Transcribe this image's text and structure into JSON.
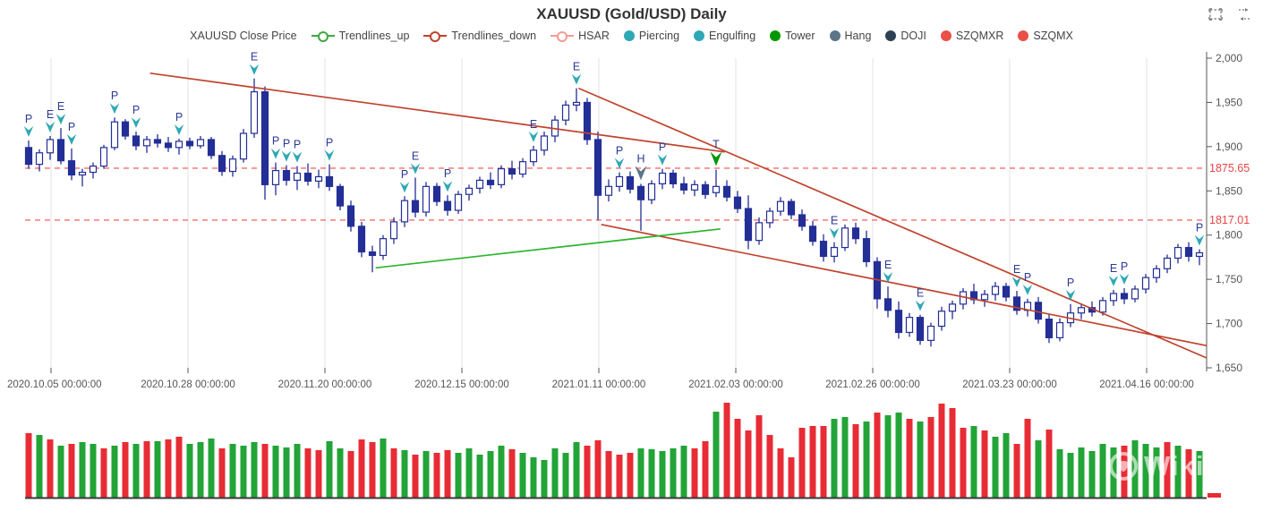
{
  "title": {
    "text": "XAUUSD (Gold/USD) Daily"
  },
  "toolbox": {
    "items": [
      {
        "name": "box-zoom"
      },
      {
        "name": "restore"
      }
    ]
  },
  "legend": [
    {
      "label": "XAUUSD Close Price",
      "symbol": "none",
      "color": "#444444"
    },
    {
      "label": "Trendlines_up",
      "symbol": "line-circle",
      "color": "#3DA93F"
    },
    {
      "label": "Trendlines_down",
      "symbol": "line-circle",
      "color": "#C0432D"
    },
    {
      "label": "HSAR",
      "symbol": "line-circle",
      "color": "#F59A93"
    },
    {
      "label": "Piercing",
      "symbol": "dot",
      "color": "#2FA8B5"
    },
    {
      "label": "Engulfing",
      "symbol": "dot",
      "color": "#2FA8B5"
    },
    {
      "label": "Tower",
      "symbol": "dot",
      "color": "#009700"
    },
    {
      "label": "Hang",
      "symbol": "dot",
      "color": "#5D7587"
    },
    {
      "label": "DOJI",
      "symbol": "dot",
      "color": "#2E4053"
    },
    {
      "label": "SZQMXR",
      "symbol": "dot",
      "color": "#E85048"
    },
    {
      "label": "SZQMX",
      "symbol": "dot",
      "color": "#E85048"
    }
  ],
  "colors": {
    "candle": "#232E96",
    "candle_up_fill": "#ffffff",
    "vol_up": "#22A437",
    "vol_down": "#E82C35",
    "grid": "#E3E3E3",
    "axis_line": "#555555",
    "axis_text": "#555555",
    "hsar_line": "#F56C6C",
    "hsar_label": "#E64545",
    "trend_up": "#2DB52D",
    "trend_down": "#C0432D",
    "marker_teal": "#2FA8B5",
    "marker_gray": "#5D7587",
    "marker_green": "#009700",
    "marker_letter": "#2B3A94",
    "baseline": "#3a3a3a"
  },
  "watermark": {
    "text": "WikiFX"
  },
  "chart_data": {
    "type": "candlestick+volume",
    "x_axis": {
      "labels": [
        "2020.10.05 00:00:00",
        "2020.10.28 00:00:00",
        "2020.11.20 00:00:00",
        "2020.12.15 00:00:00",
        "2021.01.11 00:00:00",
        "2021.02.03 00:00:00",
        "2021.02.26 00:00:00",
        "2021.03.23 00:00:00",
        "2021.04.16 00:00:00"
      ],
      "tick_x": [
        57,
        210,
        363,
        516,
        669,
        822,
        975,
        1128,
        1281
      ]
    },
    "y_axis": {
      "min": 1650,
      "max": 2000,
      "ticks": [
        2000,
        1950,
        1900,
        1850,
        1800,
        1750,
        1700,
        1650
      ]
    },
    "hsar_levels": [
      1875.65,
      1817.01
    ],
    "candles": [
      [
        1899,
        1907,
        1875,
        1880
      ],
      [
        1880,
        1897,
        1872,
        1893
      ],
      [
        1893,
        1912,
        1885,
        1908
      ],
      [
        1908,
        1921,
        1880,
        1884
      ],
      [
        1884,
        1898,
        1862,
        1868
      ],
      [
        1868,
        1875,
        1855,
        1871
      ],
      [
        1871,
        1882,
        1864,
        1878
      ],
      [
        1878,
        1902,
        1875,
        1899
      ],
      [
        1899,
        1933,
        1896,
        1928
      ],
      [
        1928,
        1931,
        1908,
        1912
      ],
      [
        1912,
        1917,
        1896,
        1901
      ],
      [
        1901,
        1912,
        1893,
        1908
      ],
      [
        1908,
        1914,
        1899,
        1904
      ],
      [
        1904,
        1911,
        1894,
        1899
      ],
      [
        1899,
        1909,
        1891,
        1906
      ],
      [
        1906,
        1910,
        1897,
        1901
      ],
      [
        1901,
        1912,
        1898,
        1908
      ],
      [
        1908,
        1911,
        1886,
        1890
      ],
      [
        1890,
        1895,
        1867,
        1872
      ],
      [
        1872,
        1890,
        1866,
        1886
      ],
      [
        1886,
        1920,
        1882,
        1915
      ],
      [
        1915,
        1977,
        1910,
        1962
      ],
      [
        1962,
        1968,
        1840,
        1857
      ],
      [
        1857,
        1882,
        1845,
        1873
      ],
      [
        1873,
        1879,
        1856,
        1862
      ],
      [
        1862,
        1878,
        1851,
        1870
      ],
      [
        1870,
        1881,
        1856,
        1861
      ],
      [
        1861,
        1874,
        1853,
        1866
      ],
      [
        1866,
        1880,
        1850,
        1855
      ],
      [
        1855,
        1858,
        1828,
        1833
      ],
      [
        1833,
        1839,
        1804,
        1810
      ],
      [
        1810,
        1815,
        1775,
        1781
      ],
      [
        1781,
        1788,
        1758,
        1777
      ],
      [
        1777,
        1800,
        1772,
        1796
      ],
      [
        1796,
        1820,
        1790,
        1815
      ],
      [
        1815,
        1844,
        1809,
        1839
      ],
      [
        1839,
        1865,
        1820,
        1826
      ],
      [
        1826,
        1860,
        1821,
        1855
      ],
      [
        1855,
        1859,
        1833,
        1838
      ],
      [
        1838,
        1845,
        1822,
        1828
      ],
      [
        1828,
        1850,
        1824,
        1846
      ],
      [
        1846,
        1857,
        1839,
        1853
      ],
      [
        1853,
        1866,
        1847,
        1862
      ],
      [
        1862,
        1871,
        1852,
        1857
      ],
      [
        1857,
        1879,
        1853,
        1875
      ],
      [
        1875,
        1884,
        1863,
        1869
      ],
      [
        1869,
        1887,
        1865,
        1883
      ],
      [
        1883,
        1901,
        1878,
        1896
      ],
      [
        1896,
        1917,
        1890,
        1912
      ],
      [
        1912,
        1935,
        1905,
        1930
      ],
      [
        1930,
        1952,
        1924,
        1947
      ],
      [
        1947,
        1966,
        1940,
        1950
      ],
      [
        1950,
        1955,
        1902,
        1908
      ],
      [
        1908,
        1917,
        1817,
        1845
      ],
      [
        1845,
        1863,
        1838,
        1855
      ],
      [
        1855,
        1871,
        1849,
        1866
      ],
      [
        1866,
        1872,
        1847,
        1852
      ],
      [
        1855,
        1858,
        1805,
        1840
      ],
      [
        1840,
        1862,
        1835,
        1858
      ],
      [
        1858,
        1875,
        1852,
        1870
      ],
      [
        1870,
        1874,
        1853,
        1858
      ],
      [
        1858,
        1866,
        1846,
        1851
      ],
      [
        1851,
        1862,
        1844,
        1857
      ],
      [
        1857,
        1861,
        1841,
        1846
      ],
      [
        1848,
        1874,
        1843,
        1855
      ],
      [
        1855,
        1862,
        1838,
        1843
      ],
      [
        1843,
        1850,
        1825,
        1830
      ],
      [
        1830,
        1845,
        1784,
        1794
      ],
      [
        1794,
        1820,
        1789,
        1814
      ],
      [
        1814,
        1831,
        1808,
        1827
      ],
      [
        1827,
        1843,
        1822,
        1838
      ],
      [
        1838,
        1841,
        1818,
        1823
      ],
      [
        1823,
        1829,
        1805,
        1810
      ],
      [
        1810,
        1816,
        1788,
        1793
      ],
      [
        1793,
        1801,
        1770,
        1776
      ],
      [
        1776,
        1792,
        1769,
        1786
      ],
      [
        1786,
        1812,
        1782,
        1808
      ],
      [
        1808,
        1814,
        1790,
        1796
      ],
      [
        1796,
        1805,
        1764,
        1770
      ],
      [
        1770,
        1775,
        1717,
        1728
      ],
      [
        1728,
        1742,
        1707,
        1715
      ],
      [
        1715,
        1725,
        1683,
        1690
      ],
      [
        1690,
        1712,
        1685,
        1707
      ],
      [
        1707,
        1710,
        1676,
        1681
      ],
      [
        1681,
        1701,
        1674,
        1697
      ],
      [
        1697,
        1719,
        1692,
        1714
      ],
      [
        1714,
        1726,
        1705,
        1722
      ],
      [
        1722,
        1740,
        1716,
        1736
      ],
      [
        1736,
        1745,
        1722,
        1727
      ],
      [
        1727,
        1738,
        1719,
        1733
      ],
      [
        1733,
        1747,
        1726,
        1742
      ],
      [
        1742,
        1746,
        1725,
        1730
      ],
      [
        1730,
        1737,
        1710,
        1715
      ],
      [
        1715,
        1728,
        1708,
        1724
      ],
      [
        1724,
        1730,
        1700,
        1705
      ],
      [
        1705,
        1711,
        1678,
        1684
      ],
      [
        1684,
        1706,
        1680,
        1701
      ],
      [
        1701,
        1722,
        1696,
        1712
      ],
      [
        1712,
        1722,
        1705,
        1718
      ],
      [
        1718,
        1725,
        1708,
        1713
      ],
      [
        1713,
        1730,
        1709,
        1726
      ],
      [
        1726,
        1738,
        1720,
        1734
      ],
      [
        1734,
        1740,
        1722,
        1728
      ],
      [
        1728,
        1743,
        1724,
        1739
      ],
      [
        1739,
        1756,
        1734,
        1752
      ],
      [
        1752,
        1766,
        1746,
        1762
      ],
      [
        1762,
        1778,
        1757,
        1774
      ],
      [
        1774,
        1790,
        1768,
        1786
      ],
      [
        1786,
        1792,
        1770,
        1776
      ],
      [
        1776,
        1784,
        1766,
        1780
      ]
    ],
    "volumes": [
      72,
      70,
      65,
      58,
      60,
      62,
      60,
      55,
      58,
      62,
      60,
      63,
      63,
      65,
      68,
      60,
      62,
      66,
      55,
      60,
      58,
      62,
      60,
      58,
      56,
      60,
      55,
      53,
      63,
      55,
      52,
      65,
      62,
      66,
      55,
      53,
      48,
      52,
      50,
      53,
      50,
      55,
      48,
      52,
      58,
      54,
      50,
      45,
      42,
      55,
      50,
      62,
      58,
      64,
      52,
      48,
      50,
      55,
      54,
      52,
      55,
      58,
      55,
      63,
      96,
      106,
      88,
      75,
      92,
      70,
      55,
      45,
      78,
      80,
      80,
      88,
      90,
      82,
      85,
      95,
      92,
      95,
      88,
      85,
      90,
      105,
      100,
      78,
      80,
      75,
      68,
      72,
      60,
      88,
      64,
      76,
      54,
      50,
      56,
      52,
      60,
      56,
      58,
      64,
      60,
      56,
      62,
      58,
      54,
      52
    ],
    "volume_colors": "rgrgrggrgrgrgrrgggrgggrgggrrggrrrgrgrgrrgggggrggggggrrrrrgggggrrgrrrrrrrrrrggrgrggrgrrrrgrggrrgrggggggrgggrgrgg",
    "trailing_bar": {
      "height": 5,
      "color": "down"
    },
    "markers": [
      {
        "i": 0,
        "t": "P",
        "k": "piercing"
      },
      {
        "i": 2,
        "t": "E",
        "k": "engulfing"
      },
      {
        "i": 3,
        "t": "E",
        "k": "engulfing"
      },
      {
        "i": 4,
        "t": "P",
        "k": "piercing"
      },
      {
        "i": 8,
        "t": "P",
        "k": "piercing"
      },
      {
        "i": 10,
        "t": "P",
        "k": "piercing"
      },
      {
        "i": 14,
        "t": "P",
        "k": "piercing"
      },
      {
        "i": 21,
        "t": "E",
        "k": "engulfing"
      },
      {
        "i": 23,
        "t": "P",
        "k": "piercing"
      },
      {
        "i": 24,
        "t": "P",
        "k": "piercing"
      },
      {
        "i": 25,
        "t": "P",
        "k": "piercing"
      },
      {
        "i": 28,
        "t": "P",
        "k": "piercing"
      },
      {
        "i": 35,
        "t": "P",
        "k": "piercing"
      },
      {
        "i": 36,
        "t": "E",
        "k": "engulfing"
      },
      {
        "i": 39,
        "t": "P",
        "k": "piercing"
      },
      {
        "i": 47,
        "t": "E",
        "k": "engulfing"
      },
      {
        "i": 51,
        "t": "E",
        "k": "engulfing"
      },
      {
        "i": 55,
        "t": "P",
        "k": "piercing"
      },
      {
        "i": 57,
        "t": "H",
        "k": "hang"
      },
      {
        "i": 59,
        "t": "P",
        "k": "piercing"
      },
      {
        "i": 64,
        "t": "T",
        "k": "tower"
      },
      {
        "i": 75,
        "t": "E",
        "k": "engulfing"
      },
      {
        "i": 80,
        "t": "E",
        "k": "engulfing"
      },
      {
        "i": 83,
        "t": "E",
        "k": "engulfing"
      },
      {
        "i": 92,
        "t": "E",
        "k": "engulfing"
      },
      {
        "i": 93,
        "t": "P",
        "k": "piercing"
      },
      {
        "i": 97,
        "t": "P",
        "k": "piercing"
      },
      {
        "i": 101,
        "t": "E",
        "k": "engulfing"
      },
      {
        "i": 102,
        "t": "P",
        "k": "piercing"
      },
      {
        "i": 109,
        "t": "P",
        "k": "piercing"
      }
    ],
    "trendlines": {
      "up": [
        {
          "i1": 32.3,
          "p1": 1763,
          "i2": 64.4,
          "p2": 1807
        }
      ],
      "down": [
        {
          "i1": 11.3,
          "p1": 1983,
          "i2": 64.8,
          "p2": 1894
        },
        {
          "i1": 51.2,
          "p1": 1966,
          "i2": 109.7,
          "p2": 1661
        },
        {
          "i1": 53.3,
          "p1": 1812,
          "i2": 109.7,
          "p2": 1675
        }
      ]
    }
  }
}
